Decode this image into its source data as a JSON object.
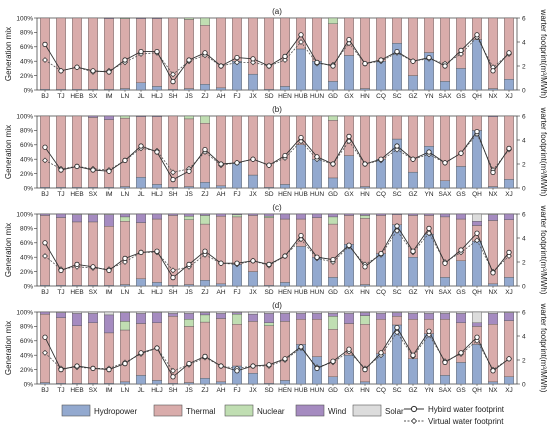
{
  "chart_data": [
    {
      "type": "bar",
      "title": "(a)",
      "ylabel": "Generation mix",
      "y2label": "warter footprint(m³/MWh)",
      "ylim": [
        0,
        100
      ],
      "y2lim": [
        0,
        6
      ],
      "categories": [
        "BJ",
        "TJ",
        "HEB",
        "SX",
        "IM",
        "LN",
        "JL",
        "HLJ",
        "SH",
        "JS",
        "ZJ",
        "AH",
        "FJ",
        "JX",
        "SD",
        "HEN",
        "HUB",
        "HUN",
        "GD",
        "GX",
        "HN",
        "CQ",
        "SC",
        "GZ",
        "YN",
        "SAX",
        "GS",
        "QH",
        "NX",
        "XJ"
      ],
      "series": [
        {
          "name": "Hydropower",
          "values": [
            1,
            1,
            1,
            1,
            1,
            2,
            10,
            5,
            1,
            2,
            8,
            3,
            40,
            22,
            1,
            5,
            57,
            40,
            12,
            48,
            2,
            40,
            65,
            20,
            52,
            12,
            30,
            70,
            2,
            15
          ]
        },
        {
          "name": "Thermal",
          "values": [
            99,
            99,
            99,
            99,
            98,
            97,
            89,
            94,
            99,
            96,
            82,
            97,
            60,
            78,
            99,
            95,
            43,
            60,
            80,
            52,
            98,
            60,
            35,
            80,
            48,
            88,
            70,
            30,
            98,
            85
          ]
        },
        {
          "name": "Nuclear",
          "values": [
            0,
            0,
            0,
            0,
            0,
            1,
            0,
            0,
            0,
            2,
            10,
            0,
            0,
            0,
            0,
            0,
            0,
            0,
            8,
            0,
            0,
            0,
            0,
            0,
            0,
            0,
            0,
            0,
            0,
            0
          ]
        },
        {
          "name": "Wind",
          "values": [
            0,
            0,
            0,
            0,
            1,
            0,
            1,
            1,
            0,
            0,
            0,
            0,
            0,
            0,
            0,
            0,
            0,
            0,
            0,
            0,
            0,
            0,
            0,
            0,
            0,
            0,
            0,
            0,
            0,
            0
          ]
        },
        {
          "name": "Solar",
          "values": [
            0,
            0,
            0,
            0,
            0,
            0,
            0,
            0,
            0,
            0,
            0,
            0,
            0,
            0,
            0,
            0,
            0,
            0,
            0,
            0,
            0,
            0,
            0,
            0,
            0,
            0,
            0,
            0,
            0,
            0
          ]
        },
        {
          "name": "Hybird water footprint",
          "axis": "right",
          "values": [
            3.8,
            1.6,
            1.9,
            1.6,
            1.5,
            2.5,
            3.2,
            3.2,
            0.7,
            2.5,
            3.1,
            2.0,
            2.7,
            2.6,
            2.0,
            2.8,
            4.6,
            2.3,
            2.0,
            4.2,
            2.2,
            2.5,
            3.2,
            2.4,
            2.7,
            2.0,
            3.3,
            4.6,
            1.6,
            3.1
          ]
        },
        {
          "name": "Virtual water footprint",
          "axis": "right",
          "values": [
            2.5,
            1.6,
            1.9,
            1.5,
            1.6,
            2.3,
            3.0,
            3.1,
            1.3,
            2.4,
            2.9,
            2.0,
            2.3,
            2.3,
            2.0,
            2.5,
            4.0,
            2.2,
            2.1,
            3.9,
            2.2,
            2.4,
            3.1,
            2.4,
            2.6,
            2.2,
            3.0,
            4.4,
            1.9,
            3.0
          ]
        }
      ]
    },
    {
      "type": "bar",
      "title": "(b)",
      "ylabel": "Generation mix",
      "y2label": "warter footprint(m³/MWh)",
      "ylim": [
        0,
        100
      ],
      "y2lim": [
        0,
        6
      ],
      "categories": [
        "BJ",
        "TJ",
        "HEB",
        "SX",
        "IM",
        "LN",
        "JL",
        "HLJ",
        "SH",
        "JS",
        "ZJ",
        "AH",
        "FJ",
        "JX",
        "SD",
        "HEN",
        "HUB",
        "HUN",
        "GD",
        "GX",
        "HN",
        "CQ",
        "SC",
        "GZ",
        "YN",
        "SAX",
        "GS",
        "QH",
        "NX",
        "XJ"
      ],
      "series": [
        {
          "name": "Hydropower",
          "values": [
            1,
            1,
            1,
            1,
            1,
            2,
            15,
            5,
            1,
            2,
            8,
            3,
            35,
            18,
            1,
            5,
            60,
            40,
            14,
            45,
            2,
            40,
            68,
            22,
            58,
            10,
            30,
            80,
            2,
            12
          ]
        },
        {
          "name": "Thermal",
          "values": [
            99,
            99,
            99,
            97,
            94,
            95,
            84,
            94,
            99,
            94,
            82,
            97,
            65,
            82,
            99,
            95,
            40,
            60,
            80,
            55,
            98,
            60,
            32,
            78,
            42,
            90,
            70,
            20,
            97,
            88
          ]
        },
        {
          "name": "Nuclear",
          "values": [
            0,
            0,
            0,
            0,
            0,
            3,
            0,
            0,
            0,
            4,
            10,
            0,
            0,
            0,
            0,
            0,
            0,
            0,
            6,
            0,
            0,
            0,
            0,
            0,
            0,
            0,
            0,
            0,
            0,
            0
          ]
        },
        {
          "name": "Wind",
          "values": [
            0,
            0,
            0,
            2,
            5,
            0,
            1,
            1,
            0,
            0,
            0,
            0,
            0,
            0,
            0,
            0,
            0,
            0,
            0,
            0,
            0,
            0,
            0,
            0,
            0,
            0,
            0,
            0,
            1,
            0
          ]
        },
        {
          "name": "Solar",
          "values": [
            0,
            0,
            0,
            0,
            0,
            0,
            0,
            0,
            0,
            0,
            0,
            0,
            0,
            0,
            0,
            0,
            0,
            0,
            0,
            0,
            0,
            0,
            0,
            0,
            0,
            0,
            0,
            0,
            0,
            0
          ]
        },
        {
          "name": "Hybird water footprint",
          "axis": "right",
          "values": [
            3.4,
            1.5,
            1.8,
            1.5,
            1.4,
            2.3,
            3.5,
            3.0,
            0.7,
            1.4,
            3.2,
            2.0,
            2.1,
            2.4,
            1.9,
            2.7,
            4.2,
            2.6,
            2.0,
            4.3,
            2.0,
            2.4,
            3.5,
            2.4,
            3.0,
            2.1,
            2.9,
            4.7,
            1.3,
            3.3
          ]
        },
        {
          "name": "Virtual water footprint",
          "axis": "right",
          "values": [
            2.3,
            1.6,
            1.8,
            1.6,
            1.5,
            2.3,
            3.3,
            3.1,
            1.3,
            1.6,
            3.0,
            1.9,
            2.1,
            2.4,
            1.9,
            2.5,
            3.9,
            2.4,
            2.0,
            3.9,
            2.0,
            2.3,
            3.2,
            2.4,
            2.8,
            2.1,
            2.9,
            4.5,
            1.5,
            3.2
          ]
        }
      ]
    },
    {
      "type": "bar",
      "title": "(c)",
      "ylabel": "Generation mix",
      "y2label": "warter footprint(m³/MWh)",
      "ylim": [
        0,
        100
      ],
      "y2lim": [
        0,
        6
      ],
      "categories": [
        "BJ",
        "TJ",
        "HEB",
        "SX",
        "IM",
        "LN",
        "JL",
        "HLJ",
        "SH",
        "JS",
        "ZJ",
        "AH",
        "FJ",
        "JX",
        "SD",
        "HEN",
        "HUB",
        "HUN",
        "GD",
        "GX",
        "HN",
        "CQ",
        "SC",
        "GZ",
        "YN",
        "SAX",
        "GS",
        "QH",
        "NX",
        "XJ"
      ],
      "series": [
        {
          "name": "Hydropower",
          "values": [
            1,
            1,
            1,
            1,
            1,
            2,
            10,
            5,
            1,
            2,
            8,
            3,
            30,
            20,
            1,
            5,
            55,
            40,
            12,
            58,
            2,
            45,
            85,
            40,
            72,
            12,
            35,
            62,
            3,
            12
          ]
        },
        {
          "name": "Thermal",
          "values": [
            97,
            94,
            88,
            88,
            82,
            88,
            78,
            88,
            97,
            90,
            78,
            94,
            66,
            78,
            94,
            88,
            38,
            55,
            74,
            40,
            92,
            53,
            14,
            58,
            26,
            84,
            58,
            22,
            88,
            80
          ]
        },
        {
          "name": "Nuclear",
          "values": [
            0,
            0,
            0,
            0,
            0,
            6,
            0,
            0,
            0,
            5,
            12,
            0,
            3,
            0,
            2,
            0,
            0,
            0,
            10,
            0,
            4,
            0,
            0,
            0,
            0,
            0,
            0,
            0,
            0,
            0
          ]
        },
        {
          "name": "Wind",
          "values": [
            2,
            5,
            10,
            10,
            16,
            4,
            12,
            7,
            2,
            3,
            2,
            3,
            1,
            2,
            3,
            7,
            7,
            5,
            4,
            2,
            2,
            2,
            1,
            2,
            2,
            4,
            7,
            6,
            8,
            8
          ]
        },
        {
          "name": "Solar",
          "values": [
            0,
            0,
            1,
            1,
            1,
            0,
            0,
            0,
            0,
            0,
            0,
            0,
            0,
            0,
            0,
            0,
            0,
            0,
            0,
            0,
            0,
            0,
            0,
            0,
            0,
            0,
            0,
            10,
            1,
            0
          ]
        },
        {
          "name": "Hybird water footprint",
          "axis": "right",
          "values": [
            3.6,
            1.3,
            1.8,
            1.6,
            1.3,
            2.3,
            2.8,
            2.9,
            0.7,
            1.8,
            2.9,
            1.9,
            1.9,
            2.1,
            1.8,
            2.5,
            4.2,
            2.4,
            2.2,
            3.4,
            1.6,
            2.7,
            5.0,
            2.9,
            4.8,
            1.9,
            3.0,
            4.4,
            1.1,
            2.8
          ]
        },
        {
          "name": "Virtual water footprint",
          "axis": "right",
          "values": [
            2.5,
            1.4,
            1.6,
            1.5,
            1.4,
            2.0,
            2.8,
            2.8,
            1.3,
            1.6,
            2.6,
            1.9,
            1.8,
            2.1,
            1.7,
            2.5,
            3.9,
            2.3,
            2.0,
            3.3,
            1.8,
            2.6,
            4.6,
            2.8,
            4.4,
            2.0,
            2.8,
            3.8,
            1.2,
            2.5
          ]
        }
      ]
    },
    {
      "type": "bar",
      "title": "(d)",
      "ylabel": "Generation mix",
      "y2label": "warter footprint(m³/MWh)",
      "ylim": [
        0,
        100
      ],
      "y2lim": [
        0,
        6
      ],
      "categories": [
        "BJ",
        "TJ",
        "HEB",
        "SX",
        "IM",
        "LN",
        "JL",
        "HLJ",
        "SH",
        "JS",
        "ZJ",
        "AH",
        "FJ",
        "JX",
        "SD",
        "HEN",
        "HUB",
        "HUN",
        "GD",
        "GX",
        "HN",
        "CQ",
        "SC",
        "GZ",
        "YN",
        "SAX",
        "GS",
        "QH",
        "NX",
        "XJ"
      ],
      "series": [
        {
          "name": "Hydropower",
          "values": [
            2,
            1,
            1,
            1,
            1,
            3,
            12,
            5,
            1,
            2,
            8,
            3,
            25,
            15,
            1,
            5,
            55,
            38,
            10,
            40,
            3,
            42,
            82,
            35,
            70,
            12,
            30,
            55,
            3,
            10
          ]
        },
        {
          "name": "Thermal",
          "values": [
            95,
            91,
            80,
            84,
            70,
            72,
            72,
            80,
            93,
            78,
            78,
            88,
            58,
            72,
            80,
            82,
            35,
            52,
            66,
            44,
            80,
            48,
            12,
            55,
            20,
            78,
            55,
            25,
            80,
            78
          ]
        },
        {
          "name": "Nuclear",
          "values": [
            0,
            0,
            0,
            0,
            0,
            12,
            0,
            0,
            0,
            10,
            10,
            0,
            14,
            0,
            4,
            0,
            0,
            0,
            18,
            0,
            12,
            0,
            0,
            0,
            0,
            0,
            0,
            0,
            0,
            0
          ]
        },
        {
          "name": "Wind",
          "values": [
            3,
            7,
            17,
            13,
            25,
            12,
            14,
            14,
            4,
            8,
            3,
            7,
            2,
            10,
            13,
            11,
            8,
            8,
            4,
            14,
            4,
            8,
            5,
            8,
            8,
            8,
            13,
            5,
            15,
            11
          ]
        },
        {
          "name": "Solar",
          "values": [
            0,
            1,
            2,
            2,
            4,
            1,
            2,
            1,
            2,
            2,
            1,
            2,
            1,
            3,
            2,
            2,
            2,
            2,
            2,
            2,
            1,
            2,
            1,
            2,
            2,
            2,
            2,
            15,
            2,
            1
          ]
        },
        {
          "name": "Hybird water footprint",
          "axis": "right",
          "values": [
            3.9,
            1.2,
            1.5,
            1.3,
            1.2,
            1.7,
            2.6,
            3.0,
            0.6,
            1.7,
            2.3,
            1.5,
            1.1,
            1.5,
            1.6,
            2.1,
            3.1,
            1.3,
            1.9,
            2.9,
            1.2,
            2.6,
            4.7,
            2.4,
            4.4,
            1.8,
            2.6,
            3.9,
            1.1,
            2.1
          ]
        },
        {
          "name": "Virtual water footprint",
          "axis": "right",
          "values": [
            2.6,
            1.3,
            1.4,
            1.3,
            1.3,
            1.8,
            2.5,
            3.0,
            1.1,
            1.6,
            2.2,
            1.5,
            1.3,
            1.5,
            1.5,
            2.0,
            3.0,
            1.4,
            1.8,
            2.7,
            1.3,
            2.4,
            4.3,
            2.3,
            4.1,
            1.9,
            2.5,
            3.6,
            1.2,
            2.1
          ]
        }
      ]
    }
  ],
  "y_ticks_left": [
    "0%",
    "20%",
    "40%",
    "60%",
    "80%",
    "100%"
  ],
  "y_ticks_right": [
    "0",
    "2",
    "4",
    "6"
  ],
  "colors": {
    "Hydropower": "#93a9cf",
    "Thermal": "#d9acab",
    "Nuclear": "#c0deb2",
    "Wind": "#a58bc0",
    "Solar": "#dcdcdc",
    "outline": "#555555"
  },
  "legend": {
    "hydropower": "Hydropower",
    "thermal": "Thermal",
    "nuclear": "Nuclear",
    "wind": "Wind",
    "solar": "Solar",
    "hybrid": "Hybird water footprint",
    "virtual": "Virtual water footprint"
  }
}
